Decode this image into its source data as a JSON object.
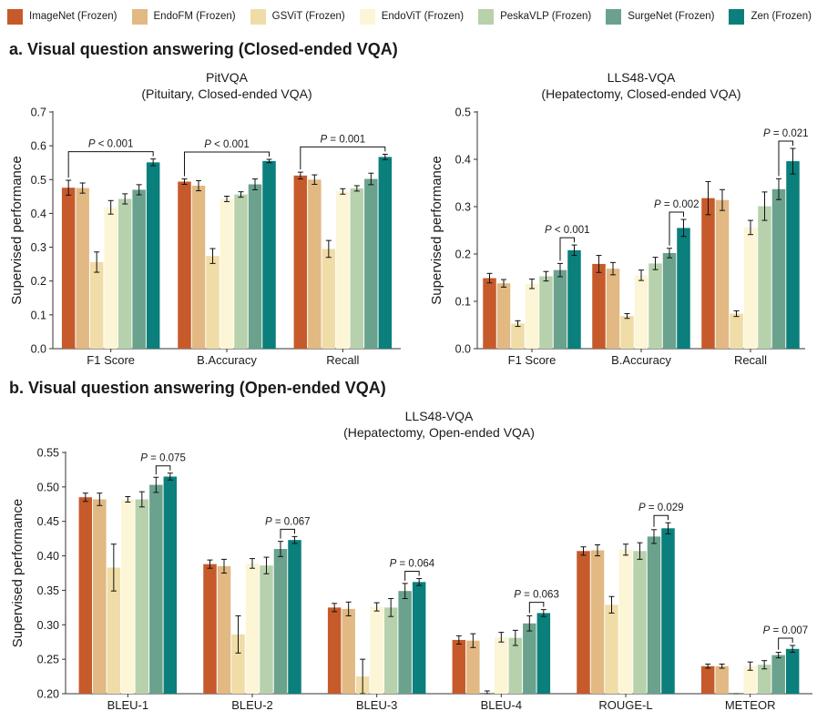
{
  "legend": {
    "items": [
      {
        "label": "ImageNet (Frozen)",
        "color": "#c65a2b"
      },
      {
        "label": "EndoFM (Frozen)",
        "color": "#e2b883"
      },
      {
        "label": "GSViT (Frozen)",
        "color": "#f0dca6"
      },
      {
        "label": "EndoViT (Frozen)",
        "color": "#fcf5d6"
      },
      {
        "label": "PeskaVLP (Frozen)",
        "color": "#b7d1ac"
      },
      {
        "label": "SurgeNet (Frozen)",
        "color": "#6aa28d"
      },
      {
        "label": "Zen (Frozen)",
        "color": "#0a7f7b"
      }
    ]
  },
  "sections": {
    "a_title": "a. Visual question answering (Closed-ended VQA)",
    "b_title": "b. Visual question answering (Open-ended VQA)"
  },
  "chart_data": [
    {
      "type": "bar",
      "title": "PitVQA",
      "subtitle": "(Pituitary, Closed-ended VQA)",
      "xlabel": "",
      "ylabel": "Supervised performance",
      "ylim": [
        0,
        0.7
      ],
      "yticks": [
        "0.0",
        "0.1",
        "0.2",
        "0.3",
        "0.4",
        "0.5",
        "0.6",
        "0.7"
      ],
      "ytick_values": [
        0,
        0.1,
        0.2,
        0.3,
        0.4,
        0.5,
        0.6,
        0.7
      ],
      "categories": [
        "F1 Score",
        "B.Accuracy",
        "Recall"
      ],
      "series": [
        {
          "name": "ImageNet (Frozen)",
          "values": [
            0.476,
            0.494,
            0.512
          ],
          "errors": [
            0.022,
            0.008,
            0.01
          ]
        },
        {
          "name": "EndoFM (Frozen)",
          "values": [
            0.475,
            0.482,
            0.5
          ],
          "errors": [
            0.015,
            0.015,
            0.014
          ]
        },
        {
          "name": "GSViT (Frozen)",
          "values": [
            0.256,
            0.274,
            0.295
          ],
          "errors": [
            0.03,
            0.022,
            0.025
          ]
        },
        {
          "name": "EndoViT (Frozen)",
          "values": [
            0.418,
            0.443,
            0.465
          ],
          "errors": [
            0.02,
            0.008,
            0.008
          ]
        },
        {
          "name": "PeskaVLP (Frozen)",
          "values": [
            0.443,
            0.456,
            0.474
          ],
          "errors": [
            0.015,
            0.008,
            0.008
          ]
        },
        {
          "name": "SurgeNet (Frozen)",
          "values": [
            0.47,
            0.486,
            0.502
          ],
          "errors": [
            0.015,
            0.016,
            0.017
          ]
        },
        {
          "name": "Zen (Frozen)",
          "values": [
            0.551,
            0.555,
            0.567
          ],
          "errors": [
            0.01,
            0.005,
            0.008
          ]
        }
      ],
      "annotations": [
        {
          "text": "P < 0.001",
          "category": 0,
          "from": 0,
          "to": 6
        },
        {
          "text": "P < 0.001",
          "category": 1,
          "from": 0,
          "to": 6
        },
        {
          "text": "P = 0.001",
          "category": 2,
          "from": 0,
          "to": 6
        }
      ]
    },
    {
      "type": "bar",
      "title": "LLS48-VQA",
      "subtitle": "(Hepatectomy, Closed-ended VQA)",
      "xlabel": "",
      "ylabel": "Supervised performance",
      "ylim": [
        0,
        0.5
      ],
      "yticks": [
        "0.0",
        "0.1",
        "0.2",
        "0.3",
        "0.4",
        "0.5"
      ],
      "ytick_values": [
        0,
        0.1,
        0.2,
        0.3,
        0.4,
        0.5
      ],
      "categories": [
        "F1 Score",
        "B.Accuracy",
        "Recall"
      ],
      "series": [
        {
          "name": "ImageNet (Frozen)",
          "values": [
            0.149,
            0.179,
            0.318
          ],
          "errors": [
            0.01,
            0.018,
            0.035
          ]
        },
        {
          "name": "EndoFM (Frozen)",
          "values": [
            0.138,
            0.169,
            0.314
          ],
          "errors": [
            0.008,
            0.013,
            0.022
          ]
        },
        {
          "name": "GSViT (Frozen)",
          "values": [
            0.053,
            0.069,
            0.074
          ],
          "errors": [
            0.006,
            0.005,
            0.006
          ]
        },
        {
          "name": "EndoViT (Frozen)",
          "values": [
            0.137,
            0.155,
            0.256
          ],
          "errors": [
            0.01,
            0.011,
            0.015
          ]
        },
        {
          "name": "PeskaVLP (Frozen)",
          "values": [
            0.153,
            0.18,
            0.301
          ],
          "errors": [
            0.01,
            0.013,
            0.03
          ]
        },
        {
          "name": "SurgeNet (Frozen)",
          "values": [
            0.166,
            0.202,
            0.337
          ],
          "errors": [
            0.014,
            0.01,
            0.022
          ]
        },
        {
          "name": "Zen (Frozen)",
          "values": [
            0.208,
            0.255,
            0.396
          ],
          "errors": [
            0.011,
            0.018,
            0.027
          ]
        }
      ],
      "annotations": [
        {
          "text": "P < 0.001",
          "category": 0,
          "from": 5,
          "to": 6
        },
        {
          "text": "P = 0.002",
          "category": 1,
          "from": 5,
          "to": 6
        },
        {
          "text": "P = 0.021",
          "category": 2,
          "from": 5,
          "to": 6
        }
      ]
    },
    {
      "type": "bar",
      "title": "LLS48-VQA",
      "subtitle": "(Hepatectomy, Open-ended VQA)",
      "xlabel": "",
      "ylabel": "Supervised performance",
      "ylim": [
        0.2,
        0.55
      ],
      "yticks": [
        "0.20",
        "0.25",
        "0.30",
        "0.35",
        "0.40",
        "0.45",
        "0.50",
        "0.55"
      ],
      "ytick_values": [
        0.2,
        0.25,
        0.3,
        0.35,
        0.4,
        0.45,
        0.5,
        0.55
      ],
      "categories": [
        "BLEU-1",
        "BLEU-2",
        "BLEU-3",
        "BLEU-4",
        "ROUGE-L",
        "METEOR"
      ],
      "series": [
        {
          "name": "ImageNet (Frozen)",
          "values": [
            0.485,
            0.388,
            0.325,
            0.278,
            0.407,
            0.24
          ],
          "errors": [
            0.006,
            0.006,
            0.006,
            0.006,
            0.006,
            0.003
          ]
        },
        {
          "name": "EndoFM (Frozen)",
          "values": [
            0.482,
            0.385,
            0.323,
            0.277,
            0.408,
            0.24
          ],
          "errors": [
            0.009,
            0.01,
            0.01,
            0.01,
            0.008,
            0.003
          ]
        },
        {
          "name": "GSViT (Frozen)",
          "values": [
            0.383,
            0.286,
            0.225,
            0.199,
            0.329,
            0.197
          ],
          "errors": [
            0.034,
            0.027,
            0.025,
            0.005,
            0.012,
            0.003
          ]
        },
        {
          "name": "EndoViT (Frozen)",
          "values": [
            0.482,
            0.389,
            0.326,
            0.282,
            0.409,
            0.24
          ],
          "errors": [
            0.004,
            0.007,
            0.006,
            0.007,
            0.008,
            0.006
          ]
        },
        {
          "name": "PeskaVLP (Frozen)",
          "values": [
            0.482,
            0.386,
            0.325,
            0.281,
            0.407,
            0.242
          ],
          "errors": [
            0.011,
            0.012,
            0.013,
            0.011,
            0.012,
            0.006
          ]
        },
        {
          "name": "SurgeNet (Frozen)",
          "values": [
            0.503,
            0.41,
            0.349,
            0.302,
            0.428,
            0.256
          ],
          "errors": [
            0.011,
            0.011,
            0.011,
            0.011,
            0.01,
            0.004
          ]
        },
        {
          "name": "Zen (Frozen)",
          "values": [
            0.515,
            0.423,
            0.362,
            0.317,
            0.44,
            0.265
          ],
          "errors": [
            0.005,
            0.005,
            0.005,
            0.005,
            0.008,
            0.005
          ]
        }
      ],
      "annotations": [
        {
          "text": "P = 0.075",
          "category": 0,
          "from": 5,
          "to": 6
        },
        {
          "text": "P = 0.067",
          "category": 1,
          "from": 5,
          "to": 6
        },
        {
          "text": "P = 0.064",
          "category": 2,
          "from": 5,
          "to": 6
        },
        {
          "text": "P = 0.063",
          "category": 3,
          "from": 5,
          "to": 6
        },
        {
          "text": "P = 0.029",
          "category": 4,
          "from": 5,
          "to": 6
        },
        {
          "text": "P = 0.007",
          "category": 5,
          "from": 5,
          "to": 6
        }
      ]
    }
  ]
}
